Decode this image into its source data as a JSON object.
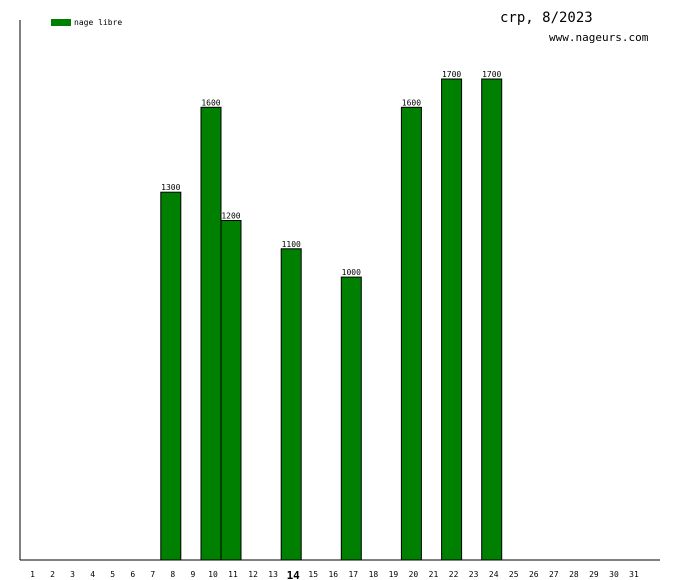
{
  "header": {
    "title": "crp, 8/2023",
    "site": "www.nageurs.com"
  },
  "colors": {
    "bar": "#008000",
    "axis": "#000000",
    "background": "#ffffff"
  },
  "chart_data": {
    "type": "bar",
    "title": "crp, 8/2023",
    "xlabel": "",
    "ylabel": "",
    "legend": {
      "entries": [
        "nage libre"
      ],
      "placement": "top-left"
    },
    "grid": false,
    "ylim": [
      0,
      1700
    ],
    "categories": [
      "1",
      "2",
      "3",
      "4",
      "5",
      "6",
      "7",
      "8",
      "9",
      "10",
      "11",
      "12",
      "13",
      "14",
      "15",
      "16",
      "17",
      "18",
      "19",
      "20",
      "21",
      "22",
      "23",
      "24",
      "25",
      "26",
      "27",
      "28",
      "29",
      "30",
      "31"
    ],
    "highlight_category": "14",
    "series": [
      {
        "name": "nage libre",
        "color": "#008000",
        "values": [
          null,
          null,
          null,
          null,
          null,
          null,
          null,
          1300,
          null,
          1600,
          1200,
          null,
          null,
          1100,
          null,
          null,
          1000,
          null,
          null,
          1600,
          null,
          1700,
          null,
          1700,
          null,
          null,
          null,
          null,
          null,
          null,
          null
        ]
      }
    ]
  }
}
